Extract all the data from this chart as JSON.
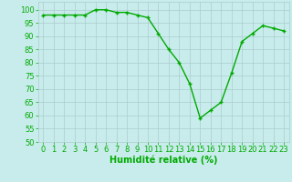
{
  "x": [
    0,
    1,
    2,
    3,
    4,
    5,
    6,
    7,
    8,
    9,
    10,
    11,
    12,
    13,
    14,
    15,
    16,
    17,
    18,
    19,
    20,
    21,
    22,
    23
  ],
  "y": [
    98,
    98,
    98,
    98,
    98,
    100,
    100,
    99,
    99,
    98,
    97,
    91,
    85,
    80,
    72,
    59,
    62,
    65,
    76,
    88,
    91,
    94,
    93,
    92
  ],
  "line_color": "#00aa00",
  "marker": "+",
  "marker_color": "#00aa00",
  "bg_color": "#c8ecec",
  "grid_color": "#aacccc",
  "xlabel": "Humidité relative (%)",
  "xlabel_color": "#00aa00",
  "xlabel_fontsize": 7,
  "tick_color": "#00aa00",
  "tick_fontsize": 6,
  "ylim": [
    50,
    103
  ],
  "xlim": [
    -0.5,
    23.5
  ],
  "yticks": [
    50,
    55,
    60,
    65,
    70,
    75,
    80,
    85,
    90,
    95,
    100
  ],
  "xticks": [
    0,
    1,
    2,
    3,
    4,
    5,
    6,
    7,
    8,
    9,
    10,
    11,
    12,
    13,
    14,
    15,
    16,
    17,
    18,
    19,
    20,
    21,
    22,
    23
  ],
  "linewidth": 1.0,
  "markersize": 3.5
}
